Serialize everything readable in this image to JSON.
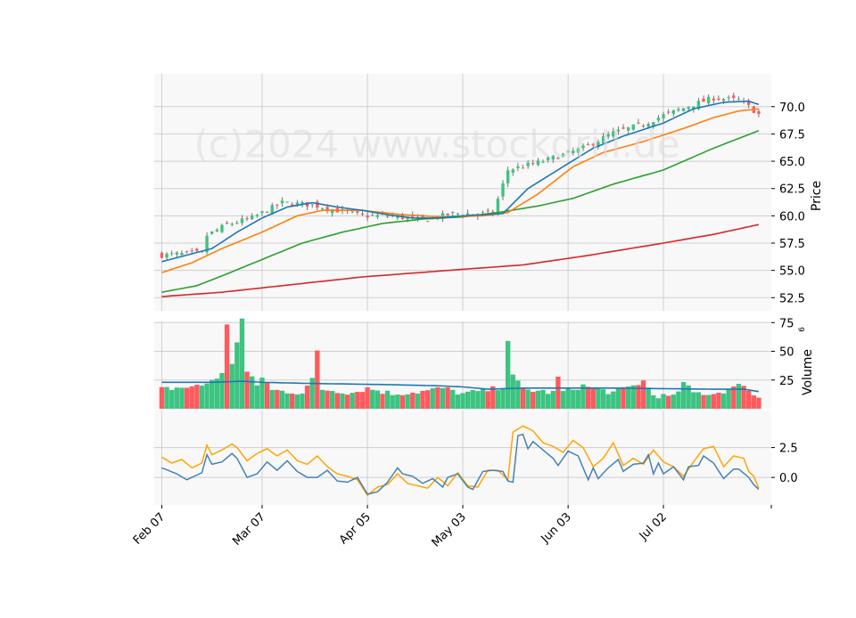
{
  "watermark": "(c)2024 www.stockdrill.de",
  "panels": {
    "price": {
      "ylabel": "Price",
      "ticks": [
        "52.5",
        "55.0",
        "57.5",
        "60.0",
        "62.5",
        "65.0",
        "67.5",
        "70.0"
      ],
      "ylim": [
        51.3,
        73.0
      ]
    },
    "volume": {
      "ylabel": "Volume",
      "exponent": "6",
      "ticks": [
        "25",
        "50",
        "75"
      ],
      "ylim": [
        0,
        76
      ]
    },
    "indicator": {
      "ticks": [
        "0.0",
        "2.5"
      ],
      "ylim": [
        -2.3,
        5.6
      ]
    }
  },
  "x_axis": {
    "tick_labels": [
      "Feb 07",
      "Mar 07",
      "Apr 05",
      "May 03",
      "Jun 03",
      "Jul 02"
    ]
  },
  "colors": {
    "up": "#3cc480",
    "down": "#ff5a5e",
    "panel_bg": "#f8f8f8",
    "grid": "#cfcfcf",
    "ma_short": "#1f77b4",
    "ma_mid": "#ff7f0e",
    "ma_long": "#2ca02c",
    "ma_200": "#d62728",
    "volume_ma": "#1f77b4",
    "indicator_1": "#4682b4",
    "indicator_2": "#ffa500"
  },
  "chart_data": {
    "type": "candlestick",
    "series_count": 120,
    "x_range": [
      -1.5,
      121.5
    ],
    "tick_positions": [
      0,
      20,
      41,
      60,
      81,
      100
    ],
    "price_anchors": [
      [
        0,
        56.4
      ],
      [
        8,
        56.6
      ],
      [
        9,
        58.2
      ],
      [
        13,
        59.2
      ],
      [
        18,
        59.8
      ],
      [
        24,
        61.2
      ],
      [
        30,
        61.0
      ],
      [
        36,
        60.4
      ],
      [
        40,
        60.0
      ],
      [
        46,
        60.0
      ],
      [
        52,
        59.6
      ],
      [
        58,
        60.2
      ],
      [
        66,
        60.2
      ],
      [
        69,
        64.2
      ],
      [
        76,
        65.0
      ],
      [
        84,
        66.2
      ],
      [
        90,
        67.6
      ],
      [
        96,
        68.4
      ],
      [
        100,
        69.2
      ],
      [
        106,
        70.2
      ],
      [
        110,
        70.8
      ],
      [
        115,
        70.6
      ],
      [
        117,
        70.0
      ],
      [
        119,
        69.3
      ]
    ],
    "ma_short_anchors": [
      [
        0,
        55.8
      ],
      [
        5,
        56.4
      ],
      [
        10,
        57.0
      ],
      [
        15,
        58.5
      ],
      [
        20,
        59.8
      ],
      [
        25,
        60.8
      ],
      [
        30,
        61.2
      ],
      [
        35,
        60.8
      ],
      [
        40,
        60.5
      ],
      [
        45,
        60.1
      ],
      [
        50,
        59.8
      ],
      [
        55,
        59.8
      ],
      [
        60,
        60.0
      ],
      [
        68,
        60.2
      ],
      [
        73,
        62.5
      ],
      [
        80,
        64.5
      ],
      [
        86,
        66.2
      ],
      [
        92,
        67.3
      ],
      [
        100,
        68.5
      ],
      [
        106,
        69.8
      ],
      [
        112,
        70.4
      ],
      [
        117,
        70.5
      ],
      [
        119,
        70.2
      ]
    ],
    "ma_mid_anchors": [
      [
        0,
        54.8
      ],
      [
        6,
        55.7
      ],
      [
        12,
        57.0
      ],
      [
        20,
        58.5
      ],
      [
        27,
        60.0
      ],
      [
        32,
        60.5
      ],
      [
        40,
        60.5
      ],
      [
        48,
        60.1
      ],
      [
        56,
        59.9
      ],
      [
        64,
        60.0
      ],
      [
        69,
        60.3
      ],
      [
        75,
        62.0
      ],
      [
        82,
        64.5
      ],
      [
        88,
        65.8
      ],
      [
        96,
        66.8
      ],
      [
        104,
        68.0
      ],
      [
        110,
        69.0
      ],
      [
        115,
        69.6
      ],
      [
        119,
        69.8
      ]
    ],
    "ma_long_anchors": [
      [
        0,
        53.0
      ],
      [
        7,
        53.6
      ],
      [
        12,
        54.5
      ],
      [
        20,
        56.0
      ],
      [
        28,
        57.5
      ],
      [
        36,
        58.5
      ],
      [
        44,
        59.3
      ],
      [
        52,
        59.7
      ],
      [
        60,
        59.9
      ],
      [
        67,
        60.3
      ],
      [
        75,
        60.9
      ],
      [
        82,
        61.6
      ],
      [
        90,
        62.9
      ],
      [
        100,
        64.2
      ],
      [
        110,
        66.2
      ],
      [
        119,
        67.8
      ]
    ],
    "ma_200_anchors": [
      [
        0,
        52.6
      ],
      [
        12,
        53.0
      ],
      [
        24,
        53.6
      ],
      [
        40,
        54.4
      ],
      [
        60,
        55.1
      ],
      [
        72,
        55.5
      ],
      [
        84,
        56.3
      ],
      [
        100,
        57.5
      ],
      [
        110,
        58.3
      ],
      [
        119,
        59.2
      ]
    ],
    "volume_anchors": [
      [
        0,
        17
      ],
      [
        8,
        20
      ],
      [
        12,
        30
      ],
      [
        13,
        72
      ],
      [
        14,
        40
      ],
      [
        16,
        78
      ],
      [
        17,
        32
      ],
      [
        19,
        20
      ],
      [
        20,
        28
      ],
      [
        22,
        16
      ],
      [
        28,
        14
      ],
      [
        30,
        25
      ],
      [
        31,
        50
      ],
      [
        32,
        17
      ],
      [
        38,
        14
      ],
      [
        41,
        18
      ],
      [
        46,
        13
      ],
      [
        52,
        15
      ],
      [
        56,
        18
      ],
      [
        60,
        13
      ],
      [
        66,
        17
      ],
      [
        68,
        20
      ],
      [
        69,
        60
      ],
      [
        70,
        28
      ],
      [
        72,
        17
      ],
      [
        78,
        14
      ],
      [
        79,
        27
      ],
      [
        80,
        15
      ],
      [
        84,
        20
      ],
      [
        86,
        18
      ],
      [
        90,
        14
      ],
      [
        94,
        20
      ],
      [
        96,
        24
      ],
      [
        98,
        12
      ],
      [
        102,
        10
      ],
      [
        104,
        22
      ],
      [
        106,
        14
      ],
      [
        110,
        13
      ],
      [
        114,
        18
      ],
      [
        116,
        22
      ],
      [
        118,
        11
      ],
      [
        119,
        10
      ]
    ],
    "volume_ma_anchors": [
      [
        0,
        23
      ],
      [
        10,
        23
      ],
      [
        16,
        24
      ],
      [
        20,
        23
      ],
      [
        30,
        22
      ],
      [
        45,
        21
      ],
      [
        55,
        20
      ],
      [
        60,
        19
      ],
      [
        65,
        17
      ],
      [
        72,
        18
      ],
      [
        90,
        18
      ],
      [
        110,
        17
      ],
      [
        116,
        17
      ],
      [
        119,
        15
      ]
    ],
    "indicator_1_anchors": [
      [
        0,
        0.8
      ],
      [
        3,
        0.3
      ],
      [
        5,
        -0.2
      ],
      [
        8,
        0.4
      ],
      [
        9,
        1.9
      ],
      [
        10,
        1.1
      ],
      [
        12,
        1.3
      ],
      [
        14,
        2.0
      ],
      [
        15,
        1.6
      ],
      [
        17,
        0.0
      ],
      [
        19,
        0.3
      ],
      [
        21,
        1.3
      ],
      [
        23,
        0.6
      ],
      [
        25,
        1.4
      ],
      [
        27,
        0.5
      ],
      [
        29,
        0.0
      ],
      [
        31,
        0.0
      ],
      [
        33,
        0.6
      ],
      [
        35,
        -0.3
      ],
      [
        37,
        -0.4
      ],
      [
        39,
        0.0
      ],
      [
        41,
        -1.4
      ],
      [
        43,
        -1.2
      ],
      [
        45,
        -0.4
      ],
      [
        47,
        0.8
      ],
      [
        48,
        0.3
      ],
      [
        50,
        0.1
      ],
      [
        52,
        -0.5
      ],
      [
        54,
        -0.1
      ],
      [
        56,
        -0.8
      ],
      [
        57,
        0.0
      ],
      [
        59,
        0.3
      ],
      [
        61,
        -0.8
      ],
      [
        62,
        -1.0
      ],
      [
        64,
        0.5
      ],
      [
        66,
        0.6
      ],
      [
        68,
        0.5
      ],
      [
        69,
        -0.3
      ],
      [
        70,
        -0.4
      ],
      [
        71,
        3.5
      ],
      [
        72,
        3.6
      ],
      [
        73,
        2.4
      ],
      [
        74,
        3.0
      ],
      [
        76,
        2.3
      ],
      [
        78,
        1.6
      ],
      [
        79,
        1.0
      ],
      [
        81,
        2.2
      ],
      [
        83,
        1.8
      ],
      [
        85,
        -0.2
      ],
      [
        86,
        0.8
      ],
      [
        87,
        -0.1
      ],
      [
        89,
        0.8
      ],
      [
        91,
        1.5
      ],
      [
        92,
        0.5
      ],
      [
        94,
        1.1
      ],
      [
        96,
        1.2
      ],
      [
        97,
        1.9
      ],
      [
        98,
        0.3
      ],
      [
        99,
        1.2
      ],
      [
        100,
        0.3
      ],
      [
        102,
        0.9
      ],
      [
        104,
        -0.2
      ],
      [
        105,
        0.9
      ],
      [
        107,
        1.0
      ],
      [
        108,
        1.8
      ],
      [
        110,
        1.2
      ],
      [
        112,
        -0.1
      ],
      [
        114,
        0.7
      ],
      [
        115,
        0.7
      ],
      [
        117,
        0.0
      ],
      [
        118,
        -0.6
      ],
      [
        119,
        -1.0
      ]
    ],
    "indicator_2_anchors": [
      [
        0,
        1.7
      ],
      [
        2,
        1.2
      ],
      [
        4,
        1.5
      ],
      [
        6,
        0.8
      ],
      [
        8,
        1.2
      ],
      [
        9,
        2.7
      ],
      [
        10,
        1.9
      ],
      [
        12,
        2.3
      ],
      [
        14,
        2.8
      ],
      [
        15,
        2.5
      ],
      [
        17,
        1.4
      ],
      [
        19,
        2.0
      ],
      [
        21,
        2.4
      ],
      [
        23,
        1.8
      ],
      [
        25,
        2.3
      ],
      [
        27,
        1.4
      ],
      [
        29,
        1.1
      ],
      [
        31,
        1.8
      ],
      [
        33,
        0.9
      ],
      [
        35,
        0.3
      ],
      [
        37,
        0.1
      ],
      [
        39,
        -0.2
      ],
      [
        41,
        -1.5
      ],
      [
        43,
        -0.8
      ],
      [
        45,
        -0.6
      ],
      [
        47,
        0.3
      ],
      [
        49,
        -0.5
      ],
      [
        51,
        -0.7
      ],
      [
        53,
        -0.9
      ],
      [
        55,
        0.0
      ],
      [
        57,
        -0.7
      ],
      [
        59,
        0.4
      ],
      [
        61,
        -0.7
      ],
      [
        63,
        -0.8
      ],
      [
        65,
        0.6
      ],
      [
        67,
        0.6
      ],
      [
        69,
        -0.2
      ],
      [
        70,
        3.8
      ],
      [
        72,
        4.3
      ],
      [
        74,
        3.9
      ],
      [
        76,
        2.9
      ],
      [
        78,
        2.6
      ],
      [
        80,
        2.1
      ],
      [
        82,
        3.1
      ],
      [
        84,
        2.5
      ],
      [
        86,
        0.9
      ],
      [
        88,
        1.6
      ],
      [
        90,
        2.9
      ],
      [
        92,
        1.0
      ],
      [
        94,
        1.6
      ],
      [
        96,
        1.1
      ],
      [
        98,
        2.3
      ],
      [
        100,
        1.3
      ],
      [
        102,
        0.9
      ],
      [
        104,
        0.1
      ],
      [
        106,
        1.3
      ],
      [
        108,
        2.4
      ],
      [
        110,
        2.6
      ],
      [
        112,
        0.9
      ],
      [
        114,
        1.8
      ],
      [
        116,
        1.6
      ],
      [
        117,
        0.5
      ],
      [
        118,
        0.1
      ],
      [
        119,
        -0.9
      ]
    ]
  }
}
